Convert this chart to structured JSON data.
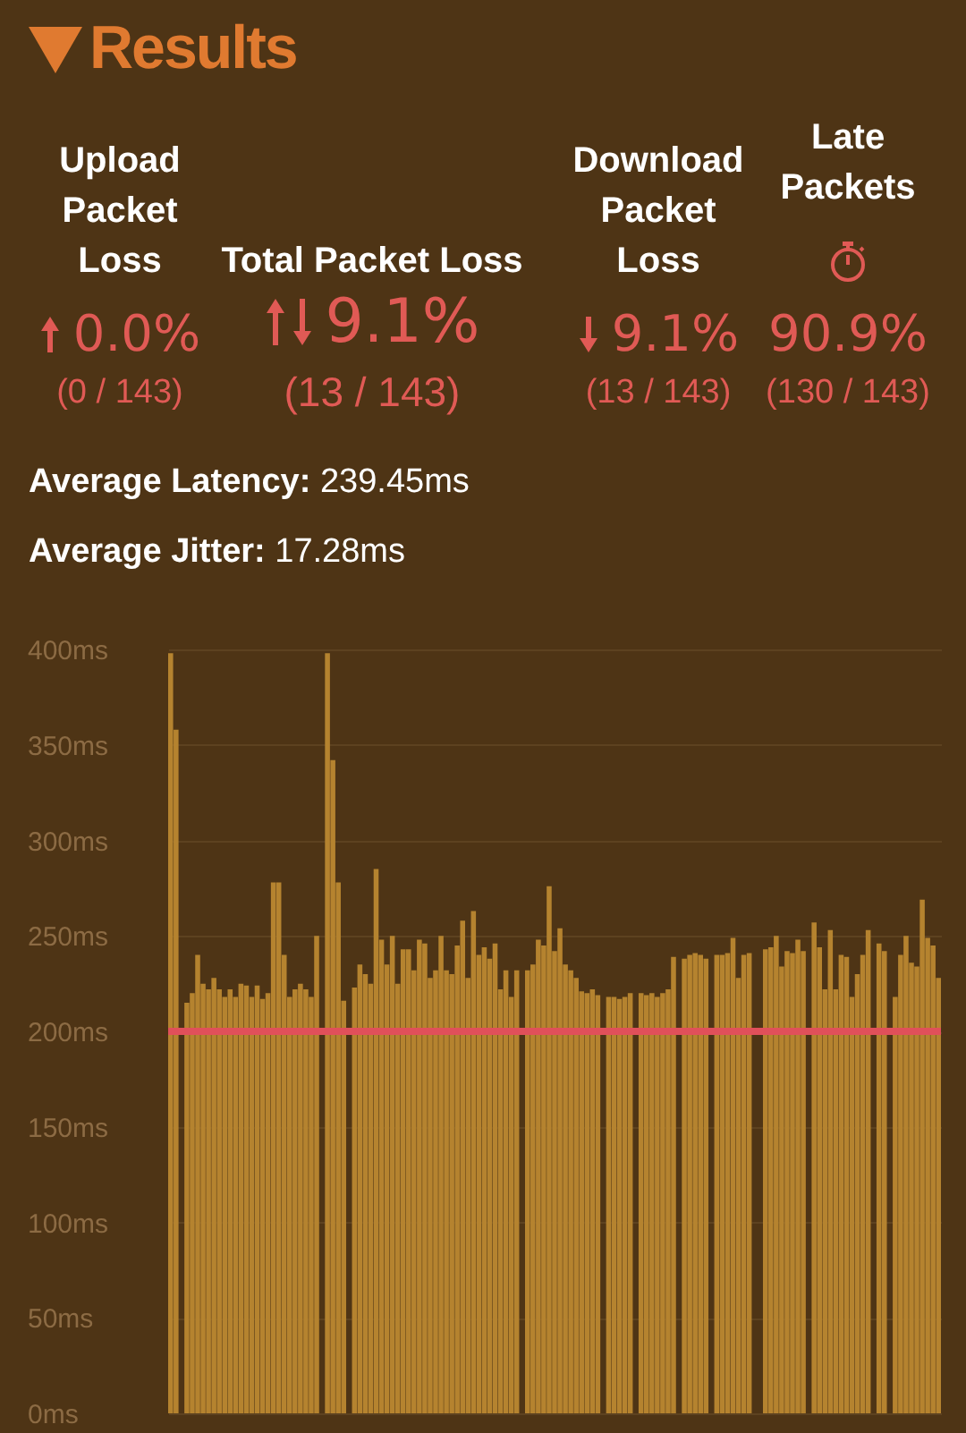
{
  "chart_data": {
    "type": "bar",
    "title": "Results",
    "annotations": [
      "Upload Packet Loss",
      "0.0%",
      "(0 / 143)",
      "Total Packet Loss",
      "9.1%",
      "(13 / 143)",
      "Download Packet Loss",
      "9.1%",
      "(13 / 143)",
      "Late Packets",
      "90.9%",
      "(130 / 143)",
      "Average Latency: 239.45ms",
      "Average Jitter: 17.28ms"
    ],
    "categories": [
      null,
      null,
      null,
      null,
      null,
      null,
      null,
      null,
      null,
      null,
      null,
      null,
      null,
      null,
      null,
      null,
      null,
      null,
      null,
      null,
      null,
      null,
      null,
      null,
      null,
      null,
      null,
      null,
      null,
      null,
      null,
      null,
      null,
      null,
      null,
      null,
      null,
      null,
      null,
      null,
      null,
      null,
      null,
      null,
      null,
      null,
      null,
      null,
      null,
      null,
      null,
      null,
      null,
      null,
      null,
      null,
      null,
      null,
      null,
      null,
      null,
      null,
      null,
      null,
      null,
      null,
      null,
      null,
      null,
      null,
      null,
      null,
      null,
      null,
      null,
      null,
      null,
      null,
      null,
      null,
      null,
      null,
      null,
      null,
      null,
      null,
      null,
      null,
      null,
      null,
      null,
      null,
      null,
      null,
      null,
      null,
      null,
      null,
      null,
      null,
      null,
      null,
      null,
      null,
      null,
      null,
      null,
      null,
      null,
      null,
      null,
      null,
      null,
      null,
      null,
      null,
      null,
      null,
      null,
      null,
      null,
      null,
      null,
      null,
      null,
      null,
      null,
      null,
      null,
      null,
      null,
      null,
      null,
      null,
      null,
      null,
      null,
      null,
      null,
      null,
      null,
      null,
      null
    ],
    "values": [
      398,
      358,
      null,
      215,
      220,
      240,
      225,
      222,
      228,
      222,
      218,
      222,
      218,
      225,
      224,
      218,
      224,
      217,
      220,
      278,
      278,
      240,
      218,
      222,
      225,
      222,
      218,
      250,
      null,
      398,
      342,
      278,
      216,
      null,
      223,
      235,
      230,
      225,
      285,
      248,
      235,
      250,
      225,
      243,
      243,
      232,
      248,
      246,
      228,
      232,
      250,
      232,
      230,
      245,
      258,
      228,
      263,
      240,
      244,
      238,
      246,
      222,
      232,
      218,
      232,
      null,
      232,
      235,
      248,
      245,
      276,
      242,
      254,
      235,
      232,
      228,
      221,
      220,
      222,
      219,
      null,
      218,
      218,
      217,
      218,
      220,
      null,
      220,
      219,
      220,
      218,
      220,
      222,
      239,
      null,
      238,
      240,
      241,
      240,
      238,
      null,
      240,
      240,
      241,
      249,
      228,
      240,
      241,
      null,
      null,
      243,
      244,
      250,
      234,
      242,
      241,
      248,
      242,
      null,
      257,
      244,
      222,
      253,
      222,
      240,
      239,
      218,
      230,
      240,
      253,
      null,
      246,
      242,
      null,
      218,
      240,
      250,
      236,
      234,
      269,
      249,
      245,
      228
    ],
    "color": "#b5832f",
    "ylim": [
      0,
      400
    ],
    "yticks": [
      {
        "value": 0,
        "label": "0ms"
      },
      {
        "value": 50,
        "label": "50ms"
      },
      {
        "value": 100,
        "label": "100ms"
      },
      {
        "value": 150,
        "label": "150ms"
      },
      {
        "value": 200,
        "label": "200ms"
      },
      {
        "value": 250,
        "label": "250ms"
      },
      {
        "value": 300,
        "label": "300ms"
      },
      {
        "value": 350,
        "label": "350ms"
      },
      {
        "value": 400,
        "label": "400ms"
      }
    ],
    "grid": "y",
    "tick_labels": "y",
    "ref_lines": [
      {
        "axis": "y",
        "value": 200,
        "color": "#e0505a"
      }
    ]
  }
}
